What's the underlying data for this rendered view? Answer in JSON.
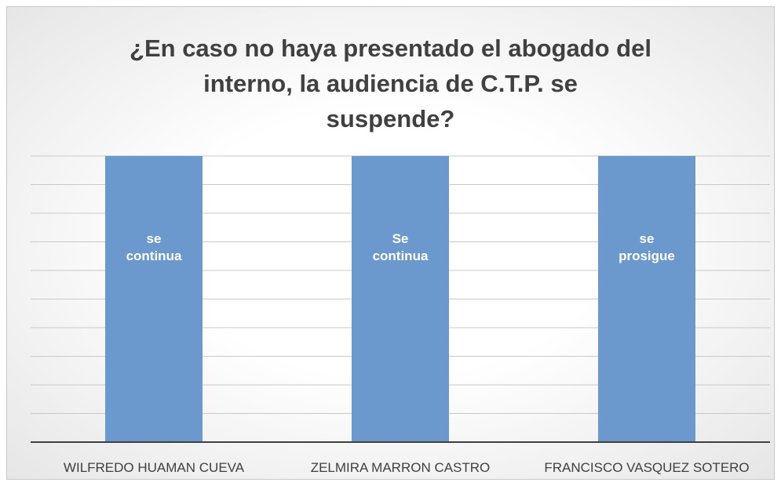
{
  "chart_data": {
    "type": "bar",
    "title": "¿En caso no haya presentado el abogado del\ninterno, la audiencia de C.T.P. se\nsuspende?",
    "categories": [
      "WILFREDO HUAMAN CUEVA",
      "ZELMIRA MARRON CASTRO",
      "FRANCISCO VASQUEZ SOTERO"
    ],
    "values": [
      10,
      10,
      10
    ],
    "data_labels": [
      "se continua",
      "Se continua",
      "se prosigue"
    ],
    "color": "#6b98cd",
    "ylim": [
      0,
      10
    ],
    "yticks": [
      0,
      1,
      2,
      3,
      4,
      5,
      6,
      7,
      8,
      9,
      10
    ],
    "grid": true
  }
}
